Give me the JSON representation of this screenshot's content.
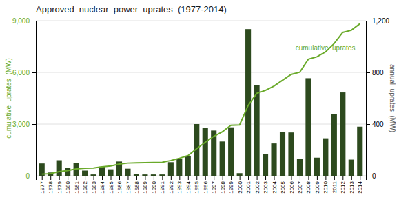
{
  "chart_data": {
    "type": "bar",
    "title": "Approved  nuclear  power  uprates  (1977-2014)",
    "x": [
      1977,
      1978,
      1979,
      1980,
      1981,
      1982,
      1983,
      1984,
      1985,
      1986,
      1987,
      1988,
      1989,
      1990,
      1991,
      1992,
      1993,
      1994,
      1995,
      1996,
      1997,
      1998,
      1999,
      2000,
      2001,
      2002,
      2003,
      2004,
      2005,
      2006,
      2007,
      2008,
      2009,
      2010,
      2011,
      2012,
      2013,
      2014
    ],
    "xlim": [
      1976.3,
      2014.7
    ],
    "xticks": [
      1977,
      1978,
      1979,
      1980,
      1981,
      1982,
      1983,
      1984,
      1985,
      1986,
      1987,
      1988,
      1989,
      1990,
      1991,
      1992,
      1993,
      1994,
      1995,
      1996,
      1997,
      1998,
      1999,
      2000,
      2001,
      2002,
      2003,
      2004,
      2005,
      2006,
      2007,
      2008,
      2009,
      2010,
      2011,
      2012,
      2013,
      2014
    ],
    "y_label": "cumulative  uprates  (MW)",
    "y2_label": "annual  uprates  (MW)",
    "ylim": [
      0,
      9000
    ],
    "yticks": [
      0,
      {
        "value": 3000,
        "label": "3,000"
      },
      {
        "value": 6000,
        "label": "6,000"
      },
      {
        "value": 9000,
        "label": "9,000"
      }
    ],
    "y2lim": [
      0,
      1200
    ],
    "y2ticks": [
      0,
      400,
      800,
      {
        "value": 1200,
        "label": "1,200"
      }
    ],
    "grid": true,
    "series": [
      {
        "type": "bar",
        "axis": "y2",
        "color": "#2d4a1e",
        "values": [
          95,
          25,
          120,
          60,
          100,
          40,
          10,
          70,
          50,
          110,
          55,
          15,
          10,
          10,
          10,
          105,
          130,
          155,
          400,
          370,
          350,
          265,
          375,
          20,
          1135,
          700,
          170,
          250,
          340,
          335,
          130,
          755,
          140,
          290,
          480,
          645,
          125,
          380
        ]
      },
      {
        "type": "line",
        "color": "#6aaa2a",
        "values": [
          95,
          120,
          240,
          300,
          400,
          440,
          450,
          520,
          570,
          680,
          735,
          750,
          760,
          770,
          780,
          885,
          1015,
          1170,
          1570,
          1940,
          2290,
          2555,
          2930,
          2950,
          4085,
          4785,
          4955,
          5205,
          5545,
          5880,
          6010,
          6765,
          6905,
          7195,
          7675,
          8320,
          8445,
          8825
        ]
      }
    ],
    "annotations": [
      {
        "text": "cumulative  uprates",
        "x": 2006.5,
        "y": 7300
      }
    ]
  }
}
